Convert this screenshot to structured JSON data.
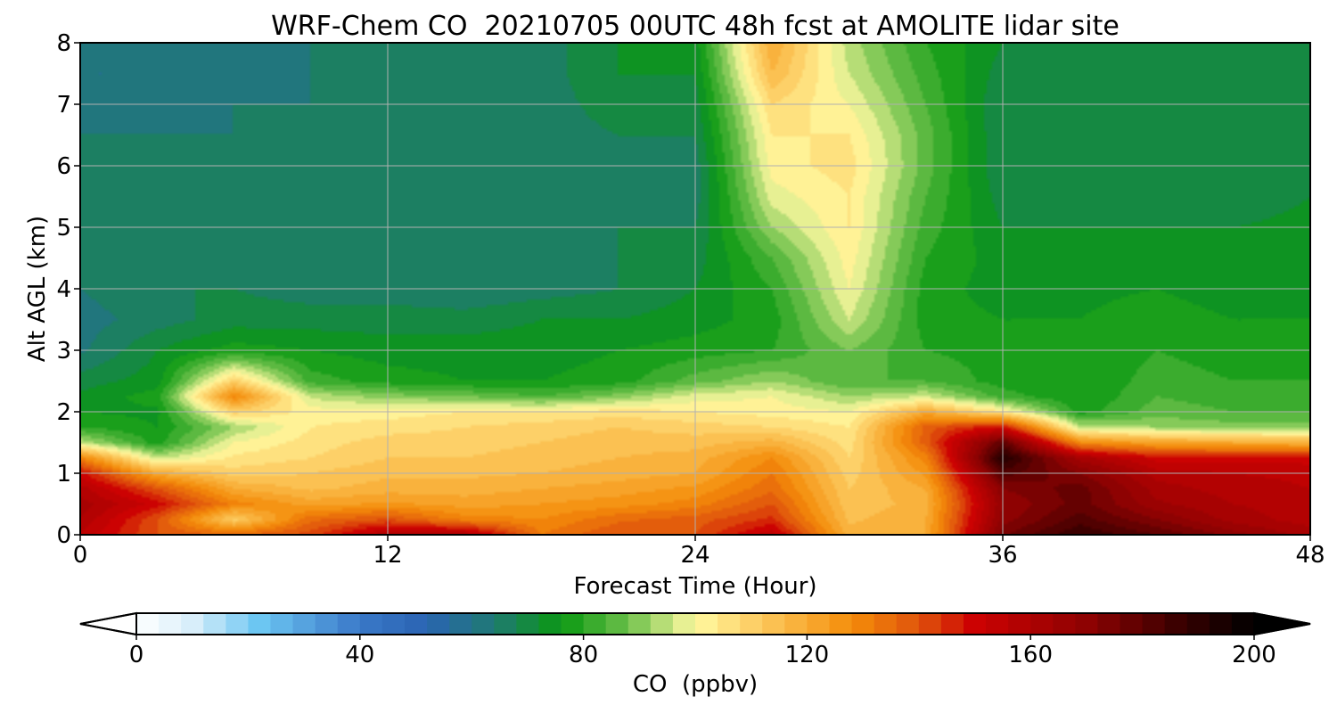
{
  "chart_data": {
    "type": "heatmap",
    "title": "WRF-Chem CO  20210705 00UTC 48h fcst at AMOLITE lidar site",
    "xlabel": "Forecast Time (Hour)",
    "ylabel": "Alt AGL (km)",
    "xlim": [
      0,
      48
    ],
    "ylim": [
      0,
      8
    ],
    "xticks": [
      0,
      12,
      24,
      36,
      48
    ],
    "xtick_labels": [
      "0",
      "12",
      "24",
      "36",
      "48"
    ],
    "yticks": [
      0,
      1,
      2,
      3,
      4,
      5,
      6,
      7,
      8
    ],
    "ytick_labels": [
      "0",
      "1",
      "2",
      "3",
      "4",
      "5",
      "6",
      "7",
      "8"
    ],
    "grid": true,
    "z_unit": "ppbv",
    "x": [
      0,
      3,
      6,
      9,
      12,
      15,
      18,
      21,
      24,
      27,
      30,
      33,
      36,
      39,
      42,
      45,
      48
    ],
    "y": [
      0,
      0.25,
      0.5,
      0.75,
      1,
      1.25,
      1.5,
      1.75,
      2,
      2.25,
      2.5,
      3,
      3.5,
      4,
      4.5,
      5,
      5.5,
      6,
      6.5,
      7,
      7.5,
      8
    ],
    "z": [
      [
        155,
        140,
        135,
        142,
        160,
        160,
        132,
        140,
        140,
        155,
        118,
        120,
        175,
        188,
        180,
        170,
        162
      ],
      [
        160,
        140,
        110,
        135,
        140,
        130,
        128,
        135,
        138,
        145,
        115,
        120,
        170,
        182,
        172,
        162,
        158
      ],
      [
        162,
        150,
        130,
        122,
        125,
        122,
        124,
        126,
        130,
        140,
        113,
        118,
        168,
        178,
        165,
        160,
        158
      ],
      [
        158,
        140,
        120,
        115,
        118,
        118,
        120,
        122,
        125,
        135,
        112,
        120,
        172,
        178,
        162,
        158,
        156
      ],
      [
        150,
        120,
        110,
        112,
        115,
        115,
        116,
        118,
        120,
        132,
        110,
        125,
        182,
        172,
        158,
        156,
        155
      ],
      [
        130,
        95,
        105,
        108,
        112,
        112,
        114,
        116,
        118,
        128,
        108,
        130,
        192,
        162,
        150,
        150,
        150
      ],
      [
        95,
        78,
        100,
        106,
        110,
        110,
        112,
        114,
        114,
        118,
        106,
        138,
        180,
        128,
        122,
        120,
        118
      ],
      [
        80,
        76,
        92,
        104,
        106,
        108,
        110,
        112,
        110,
        108,
        104,
        138,
        150,
        95,
        92,
        90,
        90
      ],
      [
        76,
        75,
        110,
        102,
        102,
        104,
        104,
        106,
        104,
        102,
        100,
        120,
        104,
        78,
        86,
        84,
        84
      ],
      [
        73,
        78,
        130,
        95,
        90,
        88,
        84,
        90,
        98,
        100,
        92,
        96,
        82,
        76,
        84,
        82,
        84
      ],
      [
        70,
        74,
        110,
        82,
        78,
        76,
        76,
        78,
        86,
        92,
        84,
        84,
        78,
        76,
        82,
        80,
        80
      ],
      [
        63,
        72,
        78,
        76,
        74,
        74,
        74,
        76,
        78,
        80,
        88,
        80,
        78,
        76,
        80,
        78,
        78
      ],
      [
        62,
        66,
        70,
        70,
        70,
        70,
        72,
        72,
        74,
        78,
        96,
        78,
        76,
        76,
        78,
        76,
        76
      ],
      [
        64,
        68,
        68,
        66,
        66,
        64,
        66,
        68,
        72,
        80,
        100,
        78,
        74,
        75,
        76,
        74,
        74
      ],
      [
        66,
        68,
        66,
        66,
        66,
        64,
        66,
        68,
        70,
        84,
        102,
        80,
        74,
        74,
        74,
        74,
        74
      ],
      [
        66,
        66,
        64,
        66,
        66,
        64,
        66,
        68,
        68,
        92,
        104,
        82,
        72,
        72,
        72,
        72,
        73
      ],
      [
        64,
        66,
        64,
        66,
        66,
        64,
        66,
        68,
        66,
        98,
        104,
        84,
        70,
        70,
        70,
        70,
        72
      ],
      [
        64,
        64,
        64,
        64,
        65,
        64,
        66,
        68,
        66,
        102,
        106,
        86,
        68,
        70,
        70,
        70,
        72
      ],
      [
        64,
        64,
        64,
        64,
        64,
        64,
        66,
        68,
        68,
        104,
        104,
        86,
        68,
        70,
        70,
        70,
        72
      ],
      [
        60,
        62,
        64,
        64,
        64,
        64,
        66,
        70,
        70,
        108,
        100,
        84,
        68,
        68,
        70,
        70,
        72
      ],
      [
        60,
        60,
        62,
        64,
        64,
        64,
        66,
        72,
        72,
        116,
        96,
        82,
        70,
        68,
        70,
        70,
        72
      ],
      [
        62,
        62,
        62,
        64,
        64,
        64,
        66,
        72,
        74,
        120,
        94,
        80,
        72,
        70,
        70,
        70,
        72
      ]
    ],
    "colorbar": {
      "label": "CO  (ppbv)",
      "min": 0,
      "max": 200,
      "ticks": [
        0,
        40,
        80,
        120,
        160,
        200
      ],
      "tick_labels": [
        "0",
        "40",
        "80",
        "120",
        "160",
        "200"
      ],
      "extend": "both",
      "under_color": "#ffffff",
      "over_color": "#000000",
      "colormap": [
        [
          0,
          "#ffffff"
        ],
        [
          10,
          "#d8eefa"
        ],
        [
          22,
          "#6cc6f2"
        ],
        [
          40,
          "#3a78c8"
        ],
        [
          52,
          "#2a64b2"
        ],
        [
          64,
          "#1f7a72"
        ],
        [
          76,
          "#0a9812"
        ],
        [
          88,
          "#6cc04a"
        ],
        [
          100,
          "#fffaa2"
        ],
        [
          112,
          "#fcc85c"
        ],
        [
          128,
          "#f48c0a"
        ],
        [
          140,
          "#e0540c"
        ],
        [
          150,
          "#cc0202"
        ],
        [
          170,
          "#8e0202"
        ],
        [
          186,
          "#3c0000"
        ],
        [
          200,
          "#000000"
        ]
      ]
    }
  }
}
